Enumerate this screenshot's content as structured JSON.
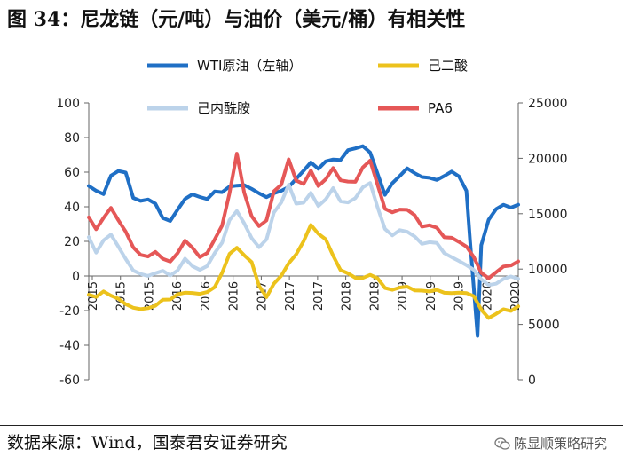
{
  "header": {
    "title": "图 34：尼龙链（元/吨）与油价（美元/桶）有相关性"
  },
  "footer": {
    "source": "数据来源：Wind，国泰君安证券研究",
    "watermark": "陈显顺策略研究",
    "watermark_icon": "wechat-icon"
  },
  "chart_data": {
    "type": "line",
    "legend": {
      "placement": "top",
      "entries": [
        "WTI原油（左轴）",
        "己二酸",
        "己内酰胺",
        "PA6"
      ]
    },
    "x_tick_labels": [
      "2015",
      "2015",
      "2015",
      "2016",
      "2016",
      "2016",
      "2017",
      "2017",
      "2017",
      "2018",
      "2018",
      "2019",
      "2019",
      "2019",
      "2020",
      "2020"
    ],
    "x_range": [
      2015.0,
      2020.8
    ],
    "left_axis": {
      "range": [
        -60,
        100
      ],
      "ticks": [
        -60,
        -40,
        -20,
        0,
        20,
        40,
        60,
        80,
        100
      ]
    },
    "right_axis": {
      "range": [
        0,
        25000
      ],
      "ticks": [
        0,
        5000,
        10000,
        15000,
        20000,
        25000
      ]
    },
    "grid": false,
    "series": [
      {
        "name": "WTI原油（左轴）",
        "axis": "left",
        "color": "#1f6fc5",
        "x": [
          2015.0,
          2015.1,
          2015.2,
          2015.3,
          2015.4,
          2015.5,
          2015.6,
          2015.7,
          2015.8,
          2015.9,
          2016.0,
          2016.1,
          2016.2,
          2016.3,
          2016.4,
          2016.5,
          2016.6,
          2016.7,
          2016.8,
          2016.9,
          2017.0,
          2017.1,
          2017.2,
          2017.3,
          2017.4,
          2017.5,
          2017.6,
          2017.7,
          2017.8,
          2017.9,
          2018.0,
          2018.1,
          2018.2,
          2018.3,
          2018.4,
          2018.5,
          2018.6,
          2018.7,
          2018.8,
          2018.9,
          2019.0,
          2019.1,
          2019.2,
          2019.3,
          2019.4,
          2019.5,
          2019.6,
          2019.7,
          2019.8,
          2019.9,
          2020.0,
          2020.1,
          2020.15,
          2020.25,
          2020.3,
          2020.4,
          2020.5,
          2020.6,
          2020.7,
          2020.8
        ],
        "y": [
          52,
          50,
          48,
          58,
          60,
          59,
          45,
          44,
          45,
          42,
          33,
          31,
          38,
          45,
          48,
          46,
          44,
          48,
          48,
          52,
          53,
          53,
          50,
          47,
          45,
          48,
          50,
          52,
          56,
          60,
          65,
          62,
          67,
          68,
          67,
          72,
          73,
          75,
          72,
          60,
          47,
          53,
          57,
          62,
          60,
          58,
          57,
          55,
          57,
          60,
          58,
          50,
          20,
          -35,
          17,
          32,
          39,
          42,
          40,
          41
        ]
      },
      {
        "name": "己二酸",
        "axis": "right",
        "color": "#ecc21c",
        "x": [
          2015.0,
          2015.1,
          2015.2,
          2015.3,
          2015.4,
          2015.5,
          2015.6,
          2015.7,
          2015.8,
          2015.9,
          2016.0,
          2016.1,
          2016.2,
          2016.3,
          2016.4,
          2016.5,
          2016.6,
          2016.7,
          2016.8,
          2016.9,
          2017.0,
          2017.1,
          2017.2,
          2017.3,
          2017.4,
          2017.5,
          2017.6,
          2017.7,
          2017.8,
          2017.9,
          2018.0,
          2018.1,
          2018.2,
          2018.3,
          2018.4,
          2018.5,
          2018.6,
          2018.7,
          2018.8,
          2018.9,
          2019.0,
          2019.1,
          2019.2,
          2019.3,
          2019.4,
          2019.5,
          2019.6,
          2019.7,
          2019.8,
          2019.9,
          2020.0,
          2020.1,
          2020.2,
          2020.3,
          2020.4,
          2020.5,
          2020.6,
          2020.7,
          2020.8
        ],
        "y": [
          7800,
          7600,
          8000,
          7500,
          7200,
          6800,
          6600,
          6500,
          6500,
          6600,
          7100,
          7200,
          7800,
          8000,
          7900,
          7700,
          7800,
          8300,
          9700,
          11500,
          12000,
          11200,
          10500,
          8400,
          7500,
          8800,
          9500,
          10500,
          11200,
          12400,
          14000,
          13300,
          12800,
          11200,
          9800,
          9500,
          9200,
          9300,
          9600,
          9200,
          8200,
          8000,
          8300,
          8500,
          8200,
          8100,
          7900,
          8000,
          7800,
          7900,
          8000,
          7900,
          7500,
          6200,
          5500,
          6000,
          6500,
          6300,
          6600
        ]
      },
      {
        "name": "己内酰胺",
        "axis": "right",
        "color": "#bcd3ea",
        "x": [
          2015.0,
          2015.1,
          2015.2,
          2015.3,
          2015.4,
          2015.5,
          2015.6,
          2015.7,
          2015.8,
          2015.9,
          2016.0,
          2016.1,
          2016.2,
          2016.3,
          2016.4,
          2016.5,
          2016.6,
          2016.7,
          2016.8,
          2016.9,
          2017.0,
          2017.1,
          2017.2,
          2017.3,
          2017.4,
          2017.5,
          2017.6,
          2017.7,
          2017.8,
          2017.9,
          2018.0,
          2018.1,
          2018.2,
          2018.3,
          2018.4,
          2018.5,
          2018.6,
          2018.7,
          2018.8,
          2018.9,
          2019.0,
          2019.1,
          2019.2,
          2019.3,
          2019.4,
          2019.5,
          2019.6,
          2019.7,
          2019.8,
          2019.9,
          2020.0,
          2020.1,
          2020.2,
          2020.3,
          2020.4,
          2020.5,
          2020.6,
          2020.7,
          2020.8
        ],
        "y": [
          13000,
          11500,
          12500,
          13000,
          12000,
          11000,
          10000,
          9600,
          9300,
          9500,
          9800,
          9500,
          10000,
          11000,
          10200,
          9800,
          10200,
          11500,
          12500,
          14500,
          15200,
          14000,
          12700,
          12000,
          12800,
          15200,
          16000,
          17500,
          15800,
          16000,
          17000,
          15800,
          16300,
          17200,
          16000,
          16000,
          16500,
          17500,
          17800,
          15500,
          13500,
          13000,
          13600,
          13500,
          13000,
          12200,
          12300,
          12300,
          11500,
          11200,
          10800,
          10300,
          9800,
          9000,
          8600,
          8800,
          9200,
          9300,
          9000
        ]
      },
      {
        "name": "PA6",
        "axis": "right",
        "color": "#e55757",
        "x": [
          2015.0,
          2015.1,
          2015.2,
          2015.3,
          2015.4,
          2015.5,
          2015.6,
          2015.7,
          2015.8,
          2015.9,
          2016.0,
          2016.1,
          2016.2,
          2016.3,
          2016.4,
          2016.5,
          2016.6,
          2016.7,
          2016.8,
          2016.9,
          2017.0,
          2017.1,
          2017.2,
          2017.3,
          2017.4,
          2017.5,
          2017.6,
          2017.7,
          2017.8,
          2017.9,
          2018.0,
          2018.1,
          2018.2,
          2018.3,
          2018.4,
          2018.5,
          2018.6,
          2018.7,
          2018.8,
          2018.9,
          2019.0,
          2019.1,
          2019.2,
          2019.3,
          2019.4,
          2019.5,
          2019.6,
          2019.7,
          2019.8,
          2019.9,
          2020.0,
          2020.1,
          2020.2,
          2020.3,
          2020.4,
          2020.5,
          2020.6,
          2020.7,
          2020.8
        ],
        "y": [
          14700,
          13500,
          14500,
          15500,
          14500,
          13500,
          12000,
          11200,
          11000,
          11500,
          11000,
          10800,
          11500,
          12500,
          11800,
          11000,
          11500,
          12800,
          14000,
          16800,
          20300,
          16800,
          14800,
          14000,
          14500,
          17000,
          17500,
          19800,
          18000,
          17800,
          19000,
          17500,
          18000,
          19000,
          18000,
          18000,
          18000,
          19200,
          19700,
          17500,
          15400,
          15200,
          15500,
          15400,
          14800,
          13700,
          13900,
          13800,
          13000,
          12900,
          12400,
          11900,
          11000,
          9700,
          9300,
          9800,
          10200,
          10200,
          10600
        ]
      }
    ]
  }
}
